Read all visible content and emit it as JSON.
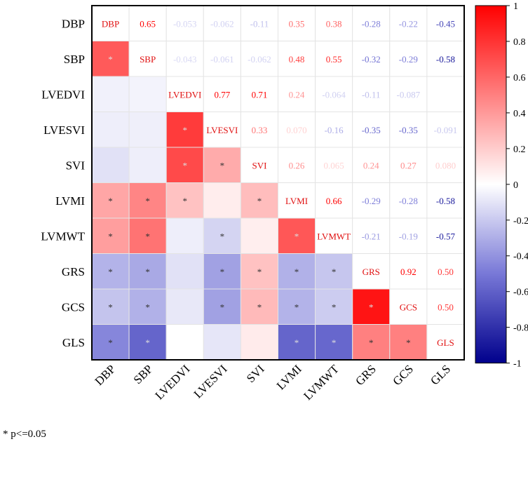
{
  "chart_data": {
    "type": "heatmap",
    "title": "",
    "variables": [
      "DBP",
      "SBP",
      "LVEDVI",
      "LVESVI",
      "SVI",
      "LVMI",
      "LVMWT",
      "GRS",
      "GCS",
      "GLS"
    ],
    "upper_values": [
      [
        null,
        0.65,
        -0.053,
        -0.062,
        -0.11,
        0.35,
        0.38,
        -0.28,
        -0.22,
        -0.45
      ],
      [
        null,
        null,
        -0.043,
        -0.061,
        -0.062,
        0.48,
        0.55,
        -0.32,
        -0.29,
        -0.58
      ],
      [
        null,
        null,
        null,
        0.77,
        0.71,
        0.24,
        -0.064,
        -0.11,
        -0.087,
        0.0
      ],
      [
        null,
        null,
        null,
        null,
        0.33,
        0.07,
        -0.16,
        -0.35,
        -0.35,
        -0.091
      ],
      [
        null,
        null,
        null,
        null,
        null,
        0.26,
        0.065,
        0.24,
        0.27,
        0.08
      ],
      [
        null,
        null,
        null,
        null,
        null,
        null,
        0.66,
        -0.29,
        -0.28,
        -0.58
      ],
      [
        null,
        null,
        null,
        null,
        null,
        null,
        null,
        -0.21,
        -0.19,
        -0.57
      ],
      [
        null,
        null,
        null,
        null,
        null,
        null,
        null,
        null,
        0.92,
        0.5
      ],
      [
        null,
        null,
        null,
        null,
        null,
        null,
        null,
        null,
        null,
        0.5
      ],
      [
        null,
        null,
        null,
        null,
        null,
        null,
        null,
        null,
        null,
        null
      ]
    ],
    "value_labels": [
      [
        "",
        "0.65",
        "-0.053",
        "-0.062",
        "-0.11",
        "0.35",
        "0.38",
        "-0.28",
        "-0.22",
        "-0.45"
      ],
      [
        "",
        "",
        "-0.043",
        "-0.061",
        "-0.062",
        "0.48",
        "0.55",
        "-0.32",
        "-0.29",
        "-0.58"
      ],
      [
        "",
        "",
        "",
        "0.77",
        "0.71",
        "0.24",
        "-0.064",
        "-0.11",
        "-0.087",
        ""
      ],
      [
        "",
        "",
        "",
        "",
        "0.33",
        "0.070",
        "-0.16",
        "-0.35",
        "-0.35",
        "-0.091"
      ],
      [
        "",
        "",
        "",
        "",
        "",
        "0.26",
        "0.065",
        "0.24",
        "0.27",
        "0.080"
      ],
      [
        "",
        "",
        "",
        "",
        "",
        "",
        "0.66",
        "-0.29",
        "-0.28",
        "-0.58"
      ],
      [
        "",
        "",
        "",
        "",
        "",
        "",
        "",
        "-0.21",
        "-0.19",
        "-0.57"
      ],
      [
        "",
        "",
        "",
        "",
        "",
        "",
        "",
        "",
        "0.92",
        "0.50"
      ],
      [
        "",
        "",
        "",
        "",
        "",
        "",
        "",
        "",
        "",
        "0.50"
      ],
      [
        "",
        "",
        "",
        "",
        "",
        "",
        "",
        "",
        "",
        ""
      ]
    ],
    "significant_lower": [
      [
        1,
        0
      ],
      [
        3,
        2
      ],
      [
        4,
        2
      ],
      [
        4,
        3
      ],
      [
        5,
        0
      ],
      [
        5,
        1
      ],
      [
        5,
        2
      ],
      [
        5,
        4
      ],
      [
        6,
        0
      ],
      [
        6,
        1
      ],
      [
        6,
        3
      ],
      [
        6,
        5
      ],
      [
        7,
        0
      ],
      [
        7,
        1
      ],
      [
        7,
        3
      ],
      [
        7,
        4
      ],
      [
        7,
        5
      ],
      [
        7,
        6
      ],
      [
        8,
        0
      ],
      [
        8,
        1
      ],
      [
        8,
        3
      ],
      [
        8,
        4
      ],
      [
        8,
        5
      ],
      [
        8,
        6
      ],
      [
        8,
        7
      ],
      [
        9,
        0
      ],
      [
        9,
        1
      ],
      [
        9,
        5
      ],
      [
        9,
        6
      ],
      [
        9,
        7
      ],
      [
        9,
        8
      ]
    ],
    "significance_marker": "*",
    "colorbar": {
      "range": [
        -1,
        1
      ],
      "ticks": [
        "1",
        "0.8",
        "0.6",
        "0.4",
        "0.2",
        "0",
        "-0.2",
        "-0.4",
        "-0.6",
        "-0.8",
        "-1"
      ]
    },
    "colors": {
      "positive": "#ff0000",
      "zero": "#ffffff",
      "negative": "#00008b"
    }
  },
  "footnote": "* p<=0.05"
}
